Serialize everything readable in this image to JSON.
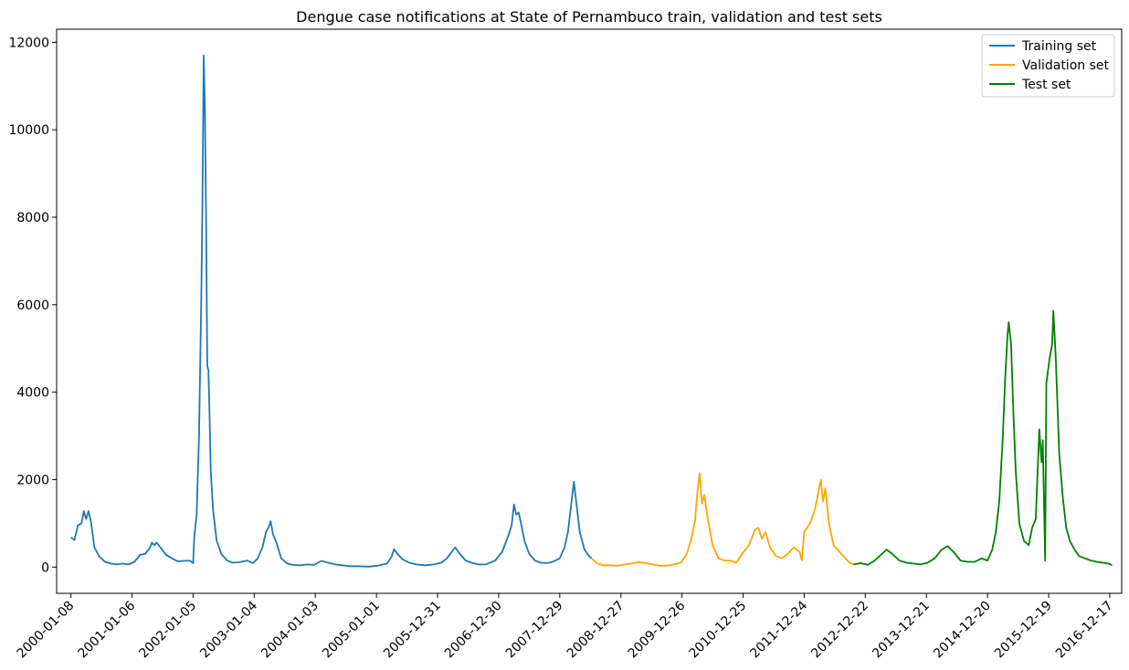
{
  "chart_data": {
    "type": "line",
    "title": "Dengue case notifications at State of Pernambuco train, validation and test sets",
    "xlabel": "",
    "ylabel": "",
    "x_type": "date",
    "xlim": [
      "1999-10-15",
      "2017-02-26"
    ],
    "ylim": [
      -600,
      12300
    ],
    "grid": false,
    "legend_position": "top-right",
    "x_ticks": [
      "2000-01-08",
      "2001-01-06",
      "2002-01-05",
      "2003-01-04",
      "2004-01-03",
      "2005-01-01",
      "2005-12-31",
      "2006-12-30",
      "2007-12-29",
      "2008-12-27",
      "2009-12-26",
      "2010-12-25",
      "2011-12-24",
      "2012-12-22",
      "2013-12-21",
      "2014-12-20",
      "2015-12-19",
      "2016-12-17"
    ],
    "y_ticks": [
      "0",
      "2000",
      "4000",
      "6000",
      "8000",
      "10000",
      "12000"
    ],
    "series": [
      {
        "name": "Training set",
        "color": "#1f77b4",
        "points": [
          [
            "2000-01-08",
            680
          ],
          [
            "2000-01-29",
            620
          ],
          [
            "2000-02-19",
            950
          ],
          [
            "2000-03-11",
            1000
          ],
          [
            "2000-03-25",
            1280
          ],
          [
            "2000-04-08",
            1100
          ],
          [
            "2000-04-22",
            1280
          ],
          [
            "2000-05-06",
            1050
          ],
          [
            "2000-05-27",
            450
          ],
          [
            "2000-06-24",
            250
          ],
          [
            "2000-07-29",
            120
          ],
          [
            "2000-09-02",
            80
          ],
          [
            "2000-10-07",
            60
          ],
          [
            "2000-11-11",
            80
          ],
          [
            "2000-12-16",
            60
          ],
          [
            "2001-01-20",
            120
          ],
          [
            "2001-02-24",
            280
          ],
          [
            "2001-03-24",
            300
          ],
          [
            "2001-04-21",
            430
          ],
          [
            "2001-05-05",
            560
          ],
          [
            "2001-05-19",
            500
          ],
          [
            "2001-06-02",
            560
          ],
          [
            "2001-06-30",
            420
          ],
          [
            "2001-07-28",
            280
          ],
          [
            "2001-09-01",
            200
          ],
          [
            "2001-10-06",
            130
          ],
          [
            "2001-11-10",
            140
          ],
          [
            "2001-12-15",
            150
          ],
          [
            "2002-01-05",
            90
          ],
          [
            "2002-01-12",
            700
          ],
          [
            "2002-01-26",
            1200
          ],
          [
            "2002-02-09",
            3000
          ],
          [
            "2002-02-23",
            6200
          ],
          [
            "2002-03-02",
            8500
          ],
          [
            "2002-03-09",
            11700
          ],
          [
            "2002-03-16",
            10500
          ],
          [
            "2002-03-23",
            8000
          ],
          [
            "2002-03-30",
            4600
          ],
          [
            "2002-04-06",
            4500
          ],
          [
            "2002-04-13",
            3500
          ],
          [
            "2002-04-20",
            2200
          ],
          [
            "2002-05-04",
            1300
          ],
          [
            "2002-05-25",
            600
          ],
          [
            "2002-06-22",
            300
          ],
          [
            "2002-07-27",
            150
          ],
          [
            "2002-08-31",
            100
          ],
          [
            "2002-10-05",
            110
          ],
          [
            "2002-11-23",
            150
          ],
          [
            "2002-12-28",
            90
          ],
          [
            "2003-01-25",
            200
          ],
          [
            "2003-02-22",
            450
          ],
          [
            "2003-03-15",
            800
          ],
          [
            "2003-03-29",
            900
          ],
          [
            "2003-04-12",
            1050
          ],
          [
            "2003-04-26",
            750
          ],
          [
            "2003-05-17",
            550
          ],
          [
            "2003-06-14",
            200
          ],
          [
            "2003-07-19",
            80
          ],
          [
            "2003-08-23",
            50
          ],
          [
            "2003-10-04",
            40
          ],
          [
            "2003-11-15",
            60
          ],
          [
            "2003-12-27",
            50
          ],
          [
            "2004-02-07",
            140
          ],
          [
            "2004-03-20",
            100
          ],
          [
            "2004-05-01",
            60
          ],
          [
            "2004-06-12",
            40
          ],
          [
            "2004-07-24",
            20
          ],
          [
            "2004-09-18",
            20
          ],
          [
            "2004-11-13",
            10
          ],
          [
            "2005-01-08",
            30
          ],
          [
            "2005-03-05",
            80
          ],
          [
            "2005-04-02",
            250
          ],
          [
            "2005-04-16",
            410
          ],
          [
            "2005-04-30",
            330
          ],
          [
            "2005-06-04",
            180
          ],
          [
            "2005-07-16",
            100
          ],
          [
            "2005-08-27",
            60
          ],
          [
            "2005-10-15",
            40
          ],
          [
            "2005-12-10",
            60
          ],
          [
            "2006-01-21",
            100
          ],
          [
            "2006-02-25",
            200
          ],
          [
            "2006-03-25",
            350
          ],
          [
            "2006-04-15",
            450
          ],
          [
            "2006-05-13",
            300
          ],
          [
            "2006-06-17",
            150
          ],
          [
            "2006-07-22",
            100
          ],
          [
            "2006-09-02",
            60
          ],
          [
            "2006-10-14",
            60
          ],
          [
            "2006-12-09",
            150
          ],
          [
            "2007-01-20",
            350
          ],
          [
            "2007-02-24",
            700
          ],
          [
            "2007-03-17",
            950
          ],
          [
            "2007-03-31",
            1430
          ],
          [
            "2007-04-14",
            1200
          ],
          [
            "2007-04-28",
            1250
          ],
          [
            "2007-05-12",
            1000
          ],
          [
            "2007-06-02",
            600
          ],
          [
            "2007-06-30",
            300
          ],
          [
            "2007-08-04",
            150
          ],
          [
            "2007-09-08",
            100
          ],
          [
            "2007-10-13",
            90
          ],
          [
            "2007-11-17",
            120
          ],
          [
            "2007-12-29",
            200
          ],
          [
            "2008-01-26",
            450
          ],
          [
            "2008-02-16",
            800
          ],
          [
            "2008-03-08",
            1500
          ],
          [
            "2008-03-22",
            1950
          ],
          [
            "2008-04-05",
            1500
          ],
          [
            "2008-04-26",
            800
          ],
          [
            "2008-05-24",
            400
          ],
          [
            "2008-06-21",
            250
          ],
          [
            "2008-07-05",
            200
          ]
        ]
      },
      {
        "name": "Validation set",
        "color": "#ffa500",
        "points": [
          [
            "2008-07-05",
            200
          ],
          [
            "2008-08-09",
            80
          ],
          [
            "2008-09-13",
            40
          ],
          [
            "2008-10-25",
            40
          ],
          [
            "2008-12-06",
            30
          ],
          [
            "2009-01-17",
            60
          ],
          [
            "2009-02-28",
            80
          ],
          [
            "2009-04-11",
            110
          ],
          [
            "2009-05-23",
            90
          ],
          [
            "2009-07-04",
            60
          ],
          [
            "2009-08-15",
            30
          ],
          [
            "2009-09-26",
            30
          ],
          [
            "2009-11-07",
            60
          ],
          [
            "2009-12-19",
            100
          ],
          [
            "2010-01-23",
            300
          ],
          [
            "2010-02-20",
            650
          ],
          [
            "2010-03-13",
            1050
          ],
          [
            "2010-03-27",
            1700
          ],
          [
            "2010-04-10",
            2150
          ],
          [
            "2010-04-24",
            1450
          ],
          [
            "2010-05-08",
            1650
          ],
          [
            "2010-05-29",
            1100
          ],
          [
            "2010-06-26",
            500
          ],
          [
            "2010-07-31",
            200
          ],
          [
            "2010-09-04",
            150
          ],
          [
            "2010-10-09",
            150
          ],
          [
            "2010-11-13",
            100
          ],
          [
            "2010-12-18",
            300
          ],
          [
            "2011-01-29",
            500
          ],
          [
            "2011-03-05",
            850
          ],
          [
            "2011-03-26",
            900
          ],
          [
            "2011-04-16",
            650
          ],
          [
            "2011-05-07",
            800
          ],
          [
            "2011-06-04",
            450
          ],
          [
            "2011-07-09",
            250
          ],
          [
            "2011-08-13",
            200
          ],
          [
            "2011-09-17",
            300
          ],
          [
            "2011-10-22",
            450
          ],
          [
            "2011-11-26",
            350
          ],
          [
            "2011-12-10",
            150
          ],
          [
            "2011-12-24",
            800
          ],
          [
            "2012-01-28",
            1000
          ],
          [
            "2012-02-25",
            1300
          ],
          [
            "2012-03-17",
            1700
          ],
          [
            "2012-03-31",
            2000
          ],
          [
            "2012-04-14",
            1500
          ],
          [
            "2012-04-28",
            1800
          ],
          [
            "2012-05-19",
            1000
          ],
          [
            "2012-06-16",
            500
          ],
          [
            "2012-07-21",
            350
          ],
          [
            "2012-08-25",
            200
          ],
          [
            "2012-09-22",
            90
          ],
          [
            "2012-10-13",
            60
          ]
        ]
      },
      {
        "name": "Test set",
        "color": "#008000",
        "points": [
          [
            "2012-10-13",
            60
          ],
          [
            "2012-11-24",
            90
          ],
          [
            "2013-01-05",
            50
          ],
          [
            "2013-02-16",
            150
          ],
          [
            "2013-03-30",
            300
          ],
          [
            "2013-04-27",
            400
          ],
          [
            "2013-06-01",
            300
          ],
          [
            "2013-07-13",
            150
          ],
          [
            "2013-08-24",
            100
          ],
          [
            "2013-10-05",
            80
          ],
          [
            "2013-11-16",
            60
          ],
          [
            "2013-12-28",
            100
          ],
          [
            "2014-02-08",
            200
          ],
          [
            "2014-03-22",
            400
          ],
          [
            "2014-04-26",
            480
          ],
          [
            "2014-05-31",
            350
          ],
          [
            "2014-07-12",
            150
          ],
          [
            "2014-08-23",
            120
          ],
          [
            "2014-10-04",
            120
          ],
          [
            "2014-11-15",
            200
          ],
          [
            "2014-12-20",
            150
          ],
          [
            "2015-01-17",
            400
          ],
          [
            "2015-02-07",
            800
          ],
          [
            "2015-02-28",
            1500
          ],
          [
            "2015-03-21",
            3000
          ],
          [
            "2015-04-04",
            4300
          ],
          [
            "2015-04-18",
            5300
          ],
          [
            "2015-04-25",
            5600
          ],
          [
            "2015-05-09",
            5100
          ],
          [
            "2015-05-23",
            3500
          ],
          [
            "2015-06-06",
            2200
          ],
          [
            "2015-06-27",
            1000
          ],
          [
            "2015-07-25",
            600
          ],
          [
            "2015-08-22",
            500
          ],
          [
            "2015-09-12",
            900
          ],
          [
            "2015-10-03",
            1100
          ],
          [
            "2015-10-24",
            3150
          ],
          [
            "2015-11-07",
            2400
          ],
          [
            "2015-11-14",
            2900
          ],
          [
            "2015-11-28",
            150
          ],
          [
            "2015-12-05",
            4200
          ],
          [
            "2015-12-26",
            4800
          ],
          [
            "2016-01-09",
            5100
          ],
          [
            "2016-01-16",
            5860
          ],
          [
            "2016-01-30",
            4800
          ],
          [
            "2016-02-20",
            2600
          ],
          [
            "2016-03-12",
            1600
          ],
          [
            "2016-04-02",
            900
          ],
          [
            "2016-04-23",
            600
          ],
          [
            "2016-05-21",
            400
          ],
          [
            "2016-06-18",
            250
          ],
          [
            "2016-07-23",
            200
          ],
          [
            "2016-08-27",
            150
          ],
          [
            "2016-10-01",
            120
          ],
          [
            "2016-11-05",
            100
          ],
          [
            "2016-12-10",
            80
          ],
          [
            "2016-12-31",
            40
          ]
        ]
      }
    ]
  }
}
